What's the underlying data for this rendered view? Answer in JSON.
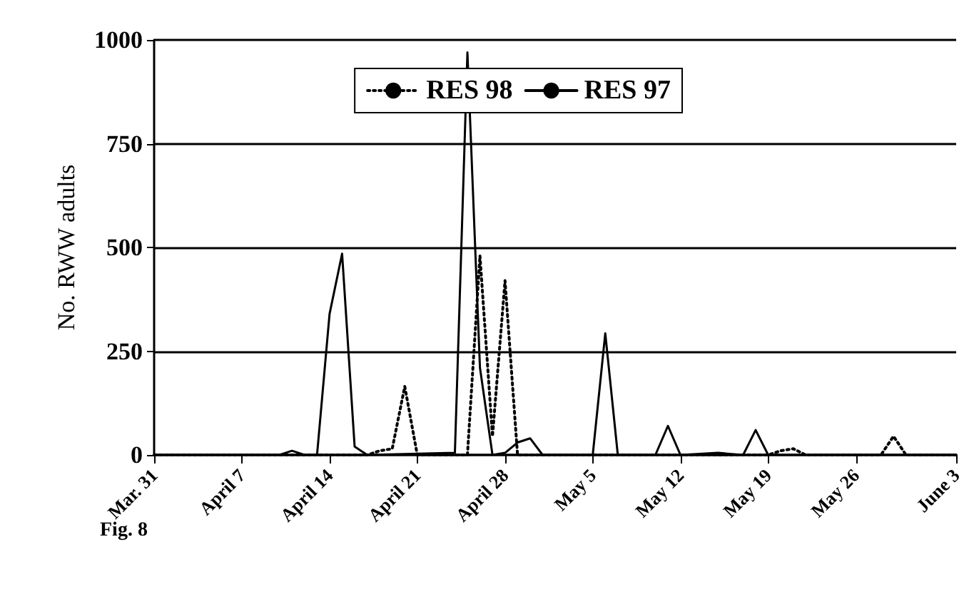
{
  "chart_data": {
    "type": "line",
    "ylabel": "No. RWW adults",
    "annotations": [
      "Fig. 8"
    ],
    "xlim": [
      "--03-31",
      "--06-03"
    ],
    "ylim": [
      0,
      1000
    ],
    "yticks": [
      0,
      250,
      500,
      750,
      1000
    ],
    "xticks": [
      {
        "value": "--03-31",
        "label": "Mar. 31"
      },
      {
        "value": "--04-07",
        "label": "April 7"
      },
      {
        "value": "--04-14",
        "label": "April 14"
      },
      {
        "value": "--04-21",
        "label": "April 21"
      },
      {
        "value": "--04-28",
        "label": "April 28"
      },
      {
        "value": "--05-05",
        "label": "May 5"
      },
      {
        "value": "--05-12",
        "label": "May 12"
      },
      {
        "value": "--05-19",
        "label": "May 19"
      },
      {
        "value": "--05-26",
        "label": "May 26"
      },
      {
        "value": "--06-03",
        "label": "June 3"
      }
    ],
    "grid": "y",
    "legend": "top right",
    "marker": "none",
    "series": [
      {
        "name": "RES 98",
        "color": "#000000",
        "line_style": "dotted",
        "x": [
          "--03-31",
          "--04-17",
          "--04-18",
          "--04-19",
          "--04-20",
          "--04-21",
          "--04-25",
          "--04-26",
          "--04-27",
          "--04-28",
          "--04-29",
          "--05-19",
          "--05-20",
          "--05-21",
          "--05-22",
          "--05-28",
          "--05-29",
          "--05-30",
          "--06-03"
        ],
        "values": [
          0,
          0,
          10,
          15,
          165,
          0,
          0,
          480,
          45,
          420,
          0,
          0,
          10,
          15,
          0,
          0,
          45,
          0,
          0
        ]
      },
      {
        "name": "RES 97",
        "color": "#000000",
        "line_style": "solid",
        "x": [
          "--03-31",
          "--04-10",
          "--04-11",
          "--04-12",
          "--04-13",
          "--04-14",
          "--04-15",
          "--04-16",
          "--04-17",
          "--04-24",
          "--04-25",
          "--04-26",
          "--04-27",
          "--04-28",
          "--04-29",
          "--04-30",
          "--05-01",
          "--05-05",
          "--05-06",
          "--05-07",
          "--05-10",
          "--05-11",
          "--05-12",
          "--05-15",
          "--05-17",
          "--05-18",
          "--05-19",
          "--06-03"
        ],
        "values": [
          0,
          0,
          10,
          0,
          0,
          340,
          485,
          20,
          0,
          5,
          970,
          210,
          0,
          5,
          30,
          40,
          0,
          0,
          293,
          0,
          0,
          70,
          0,
          5,
          0,
          60,
          0,
          0
        ]
      }
    ]
  }
}
